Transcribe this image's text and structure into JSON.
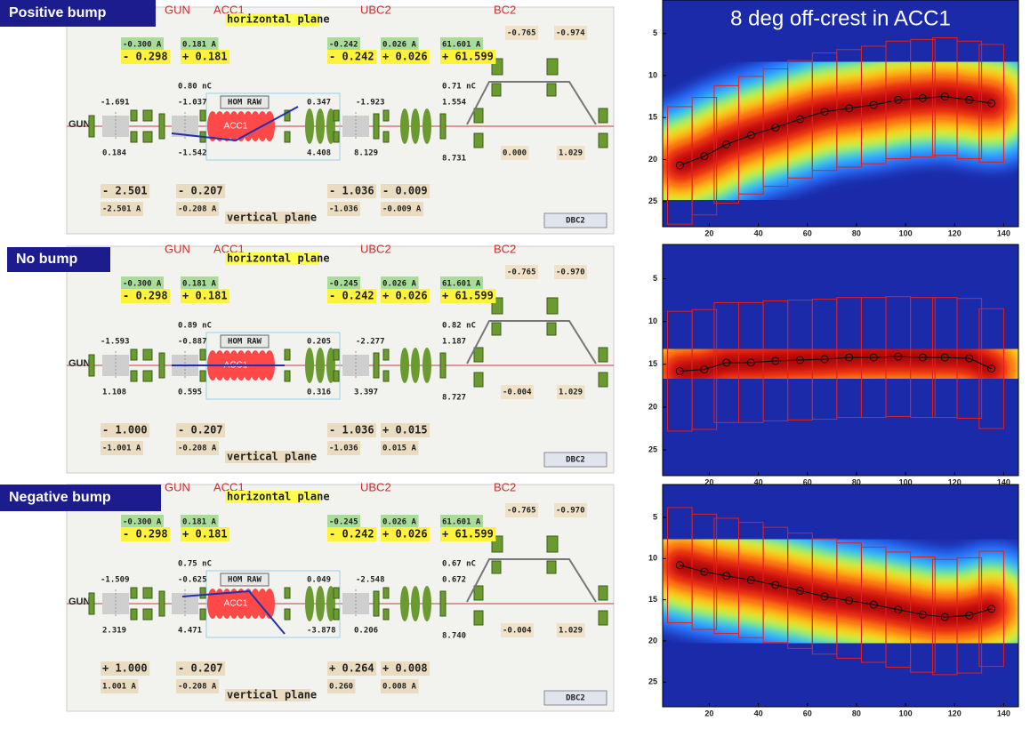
{
  "panels": [
    {
      "label": "Positive bump",
      "sections": [
        "GUN",
        "ACC1",
        "UBC2",
        "BC2"
      ],
      "beamline_label": "GUN",
      "horizontal_plane": "horizontal plane",
      "vertical_plane": "vertical plane",
      "button_hom": "HOM RAW",
      "cavity": "ACC1",
      "button_dbc2": "DBC2",
      "set_currents": [
        "-0.300 A",
        "0.181 A",
        "-0.242",
        "0.026 A",
        "61.601 A"
      ],
      "readbacks": [
        "- 0.298",
        "+ 0.181",
        "- 0.242",
        "+ 0.026",
        "+ 61.599"
      ],
      "bc2": [
        "-0.765",
        "-0.974"
      ],
      "charges": [
        "0.80 nC",
        "0.71 nC"
      ],
      "bpm_x": [
        "-1.691",
        "-1.037",
        "0.347",
        "-1.923",
        "1.554"
      ],
      "bpm_y": [
        "0.184",
        "-1.542",
        "4.408",
        "8.129",
        "8.731"
      ],
      "bc2_bpm": [
        "0.000",
        "1.029"
      ],
      "bottom_readbacks": [
        "- 2.501",
        "- 0.207",
        "- 1.036",
        "- 0.009"
      ],
      "bottom_set": [
        "-2.501 A",
        "-0.208 A",
        "-1.036",
        "-0.009 A"
      ]
    },
    {
      "label": "No bump",
      "sections": [
        "GUN",
        "ACC1",
        "UBC2",
        "BC2"
      ],
      "beamline_label": "GUN",
      "horizontal_plane": "horizontal plane",
      "vertical_plane": "vertical plane",
      "button_hom": "HOM RAW",
      "cavity": "ACC1",
      "button_dbc2": "DBC2",
      "set_currents": [
        "-0.300 A",
        "0.181 A",
        "-0.245",
        "0.026 A",
        "61.601 A"
      ],
      "readbacks": [
        "- 0.298",
        "+ 0.181",
        "- 0.242",
        "+ 0.026",
        "+ 61.599"
      ],
      "bc2": [
        "-0.765",
        "-0.970"
      ],
      "charges": [
        "0.89 nC",
        "0.82 nC"
      ],
      "bpm_x": [
        "-1.593",
        "-0.887",
        "0.205",
        "-2.277",
        "1.187"
      ],
      "bpm_y": [
        "1.108",
        "0.595",
        "0.316",
        "3.397",
        "8.727"
      ],
      "bc2_bpm": [
        "-0.004",
        "1.029"
      ],
      "bottom_readbacks": [
        "- 1.000",
        "- 0.207",
        "- 1.036",
        "+ 0.015"
      ],
      "bottom_set": [
        "-1.001 A",
        "-0.208 A",
        "-1.036",
        "0.015 A"
      ]
    },
    {
      "label": "Negative bump",
      "sections": [
        "GUN",
        "ACC1",
        "UBC2",
        "BC2"
      ],
      "beamline_label": "GUN",
      "horizontal_plane": "horizontal plane",
      "vertical_plane": "vertical plane",
      "button_hom": "HOM RAW",
      "cavity": "ACC1",
      "button_dbc2": "DBC2",
      "set_currents": [
        "-0.300 A",
        "0.181 A",
        "-0.245",
        "0.026 A",
        "61.601 A"
      ],
      "readbacks": [
        "- 0.298",
        "+ 0.181",
        "- 0.242",
        "+ 0.026",
        "+ 61.599"
      ],
      "bc2": [
        "-0.765",
        "-0.970"
      ],
      "charges": [
        "0.75 nC",
        "0.67 nC"
      ],
      "bpm_x": [
        "-1.509",
        "-0.625",
        "0.049",
        "-2.548",
        "0.672"
      ],
      "bpm_y": [
        "2.319",
        "4.471",
        "-3.878",
        "0.206",
        "8.740"
      ],
      "bc2_bpm": [
        "-0.004",
        "1.029"
      ],
      "bottom_readbacks": [
        "+ 1.000",
        "- 0.207",
        "+ 0.264",
        "+ 0.008"
      ],
      "bottom_set": [
        "1.001 A",
        "-0.208 A",
        "0.260",
        "0.008 A"
      ]
    }
  ],
  "plots": [
    {
      "type": "line",
      "title": "8 deg off-crest in ACC1",
      "xlim": [
        1,
        146
      ],
      "ylim": [
        28,
        1
      ],
      "xticks": [
        20,
        40,
        60,
        80,
        100,
        120,
        140
      ],
      "yticks": [
        5,
        10,
        15,
        20,
        25
      ],
      "centroid": {
        "x": [
          8,
          18,
          27,
          37,
          47,
          57,
          67,
          77,
          87,
          97,
          107,
          116,
          126,
          135
        ],
        "y": [
          20.7,
          19.6,
          18.2,
          17.1,
          16.2,
          15.2,
          14.3,
          13.9,
          13.5,
          12.9,
          12.7,
          12.5,
          12.9,
          13.3
        ]
      }
    },
    {
      "type": "line",
      "xlim": [
        1,
        146
      ],
      "ylim": [
        28,
        1
      ],
      "xticks": [
        20,
        40,
        60,
        80,
        100,
        120,
        140
      ],
      "yticks": [
        5,
        10,
        15,
        20,
        25
      ],
      "centroid": {
        "x": [
          8,
          18,
          27,
          37,
          47,
          57,
          67,
          77,
          87,
          97,
          107,
          116,
          126,
          135
        ],
        "y": [
          15.8,
          15.6,
          14.8,
          14.8,
          14.6,
          14.5,
          14.4,
          14.2,
          14.2,
          14.1,
          14.2,
          14.2,
          14.3,
          15.5
        ]
      }
    },
    {
      "type": "line",
      "xlim": [
        1,
        146
      ],
      "ylim": [
        28,
        1
      ],
      "xticks": [
        20,
        40,
        60,
        80,
        100,
        120,
        140
      ],
      "yticks": [
        5,
        10,
        15,
        20,
        25
      ],
      "centroid": {
        "x": [
          8,
          18,
          27,
          37,
          47,
          57,
          67,
          77,
          87,
          97,
          107,
          116,
          126,
          135
        ],
        "y": [
          10.8,
          11.6,
          12.1,
          12.6,
          13.2,
          13.9,
          14.6,
          15.1,
          15.6,
          16.2,
          16.8,
          17.1,
          16.9,
          16.1
        ]
      }
    }
  ]
}
